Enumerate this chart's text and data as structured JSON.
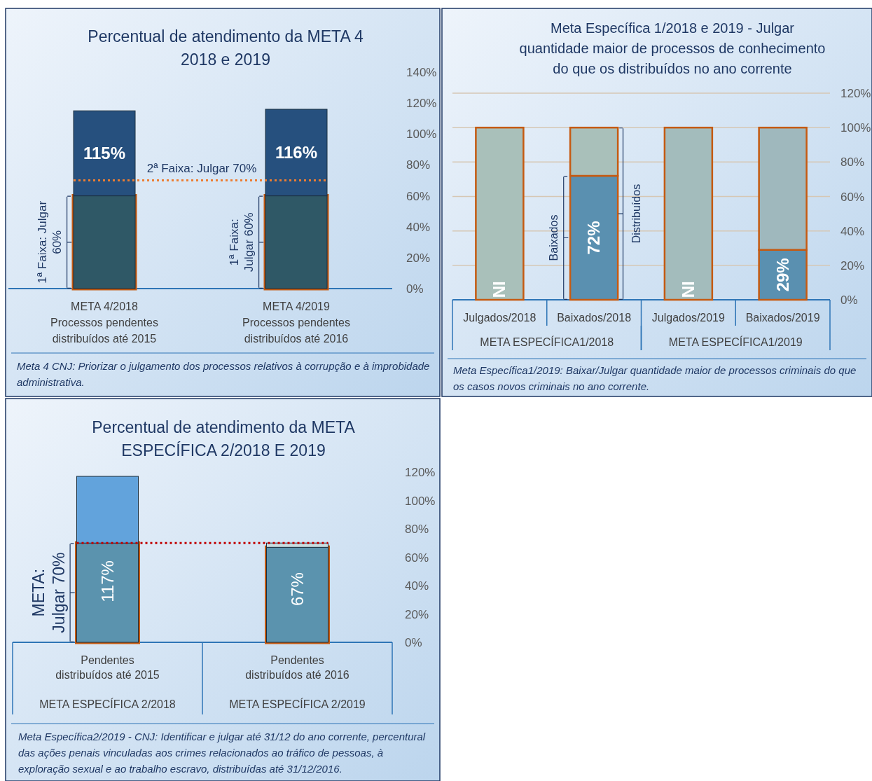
{
  "chart_data": [
    {
      "type": "bar",
      "title": "Percentual de atendimento da META 4\n2018 e 2019",
      "categories": [
        "META 4/2018\nProcessos pendentes\ndistribuídos até 2015",
        "META 4/2019\nProcessos pendentes\ndistribuídos até 2016"
      ],
      "stacked": true,
      "series": [
        {
          "colors": [
            "#2f5866",
            "#2f5866"
          ],
          "values": [
            60,
            60
          ]
        },
        {
          "colors": [
            "#26507e",
            "#26507e"
          ],
          "values": [
            55,
            56
          ]
        }
      ],
      "totals": [
        "115%",
        "116%"
      ],
      "ylim": [
        0,
        140
      ],
      "yticks": [
        {
          "value": 0,
          "label": "0%"
        },
        {
          "value": 20,
          "label": "20%"
        },
        {
          "value": 40,
          "label": "40%"
        },
        {
          "value": 60,
          "label": "60%"
        },
        {
          "value": 80,
          "label": "80%"
        },
        {
          "value": 100,
          "label": "100%"
        },
        {
          "value": 120,
          "label": "120%"
        },
        {
          "value": 140,
          "label": "140%"
        }
      ],
      "ref_lines": [
        {
          "axis": "y",
          "value": 70,
          "label": "2ª Faixa: Julgar 70%",
          "color": "#ed7d31",
          "line_style": "dotted"
        }
      ],
      "annotations": [
        "1ª Faixa: Julgar\n60%",
        "1ª Faixa:\nJulgar 60%",
        "Meta 4 CNJ: Priorizar o julgamento dos processos relativos à corrupção e à improbidade administrativa."
      ]
    },
    {
      "type": "bar",
      "title": "Meta Específica 1/2018 e 2019  - Julgar\nquantidade maior de processos de conhecimento\ndo que os distribuídos no ano corrente",
      "categories": [
        "Julgados/2018",
        "Baixados/2018",
        "Julgados/2019",
        "Baixados/2019"
      ],
      "stacked": true,
      "series": [
        {
          "colors": [
            null,
            "#5a90b0",
            null,
            "#5a90b0"
          ],
          "values": [
            null,
            72,
            null,
            29
          ],
          "value_labels": [
            "NI",
            "72%",
            "NI",
            "29%"
          ]
        },
        {
          "colors": [
            "#a9c0ba",
            "#a9c0ba",
            "#a3bcbc",
            "#9fb8bd"
          ],
          "values": [
            100,
            28,
            100,
            71
          ]
        }
      ],
      "ylim": [
        0,
        120
      ],
      "yticks": [
        {
          "value": 0,
          "label": "0%"
        },
        {
          "value": 20,
          "label": "20%"
        },
        {
          "value": 40,
          "label": "40%"
        },
        {
          "value": 60,
          "label": "60%"
        },
        {
          "value": 80,
          "label": "80%"
        },
        {
          "value": 100,
          "label": "100%"
        },
        {
          "value": 120,
          "label": "120%"
        }
      ],
      "grid": "y",
      "annotations": [
        "Baixados",
        "Distribuídos",
        "META ESPECÍFICA1/2018",
        "META ESPECÍFICA1/2019",
        "Meta Específica1/2019: Baixar/Julgar quantidade maior de processos criminais do que os casos novos criminais no ano corrente."
      ]
    },
    {
      "type": "bar",
      "title": "Percentual de atendimento da META\nESPECÍFICA 2/2018 E 2019",
      "categories": [
        "Pendentes\ndistribuídos até 2015\n\nMETA ESPECÍFICA 2/2018",
        "Pendentes\ndistribuídos até 2016\n\nMETA ESPECÍFICA 2/2019"
      ],
      "stacked": true,
      "series": [
        {
          "colors": [
            "#5b93ae",
            "#5b93ae"
          ],
          "values": [
            70,
            67
          ],
          "value_labels": [
            null,
            "67%"
          ]
        },
        {
          "colors": [
            "#62a3dc",
            "#c8dde0"
          ],
          "values": [
            47,
            3
          ]
        }
      ],
      "totals": [
        "117%",
        null
      ],
      "ylim": [
        0,
        120
      ],
      "yticks": [
        {
          "value": 0,
          "label": "0%"
        },
        {
          "value": 20,
          "label": "20%"
        },
        {
          "value": 40,
          "label": "40%"
        },
        {
          "value": 60,
          "label": "60%"
        },
        {
          "value": 80,
          "label": "80%"
        },
        {
          "value": 100,
          "label": "100%"
        },
        {
          "value": 120,
          "label": "120%"
        }
      ],
      "ref_lines": [
        {
          "axis": "y",
          "value": 70,
          "label": null,
          "color": "#c00000",
          "line_style": "dotted"
        }
      ],
      "annotations": [
        "META:\nJulgar 70%",
        "Meta Específica2/2019 - CNJ: Identificar e julgar até 31/12 do ano corrente, percentural das ações penais vinculadas aos crimes relacionados ao tráfico de pessoas, à exploração sexual e ao trabalho escravo, distribuídas até 31/12/2016."
      ]
    }
  ]
}
